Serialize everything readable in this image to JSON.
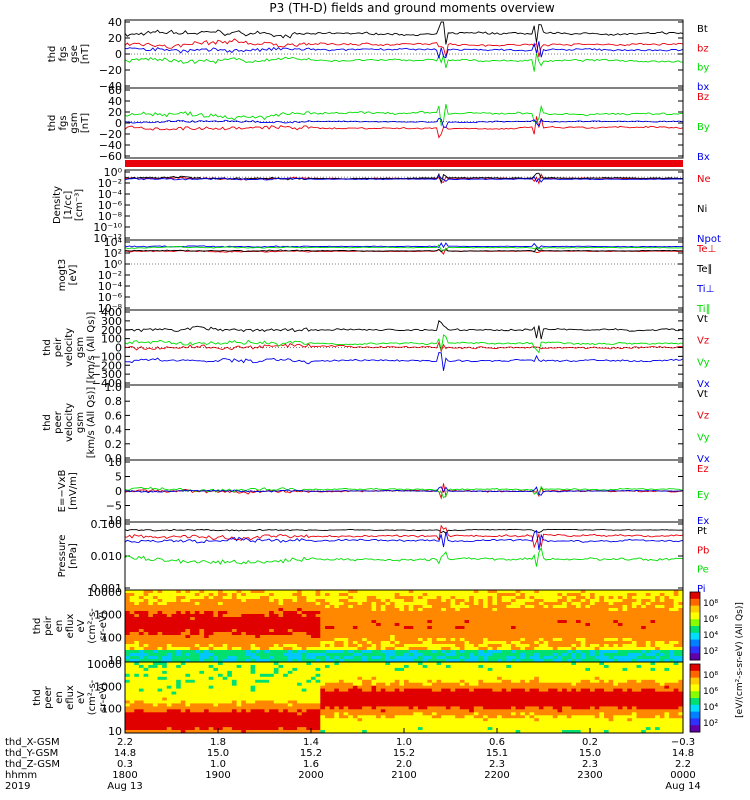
{
  "title": "P3 (TH-D) fields and ground moments overview",
  "colors": {
    "black": "#000000",
    "red": "#e8000b",
    "green": "#00dd00",
    "blue": "#0000ee"
  },
  "chart_data": [
    {
      "type": "line",
      "id": "fgs_gse",
      "ylabel": [
        "thd",
        "fgs",
        "gse",
        "[nT]"
      ],
      "yticks": [
        "40",
        "20",
        "0",
        "−20",
        "−40"
      ],
      "ylim": [
        -40,
        40
      ],
      "series": [
        {
          "name": "Bt",
          "color": "black",
          "level": 25,
          "amp": 8
        },
        {
          "name": "bz",
          "color": "red",
          "level": 12,
          "amp": 8
        },
        {
          "name": "by",
          "color": "green",
          "level": -8,
          "amp": 7
        },
        {
          "name": "bx",
          "color": "blue",
          "level": 5,
          "amp": 7
        }
      ]
    },
    {
      "type": "line",
      "id": "fgs_gsm",
      "ylabel": [
        "thd",
        "fgs",
        "gsm",
        "[nT]"
      ],
      "yticks": [
        "60",
        "40",
        "20",
        "0",
        "−20",
        "−40",
        "−60"
      ],
      "ylim": [
        -65,
        60
      ],
      "series": [
        {
          "name": "Bz",
          "color": "red",
          "level": -12,
          "amp": 10
        },
        {
          "name": "By",
          "color": "green",
          "level": 15,
          "amp": 12
        },
        {
          "name": "Bx",
          "color": "blue",
          "level": 0,
          "amp": 6
        }
      ]
    },
    {
      "type": "line",
      "id": "density",
      "ylabel": [
        "Density",
        "[1/cc]",
        "[cm⁻³]"
      ],
      "yticks": [
        "10⁰",
        "10⁻²",
        "10⁻⁴",
        "10⁻⁶",
        "10⁻⁸",
        "10⁻¹⁰",
        "10⁻¹²"
      ],
      "ylim": [
        -12,
        1
      ],
      "series": [
        {
          "name": "Ne",
          "color": "red",
          "level": -0.3,
          "amp": 0.5
        },
        {
          "name": "Ni",
          "color": "black",
          "level": -0.2,
          "amp": 0.5
        },
        {
          "name": "Npot",
          "color": "blue",
          "level": -0.4,
          "amp": 0.4
        }
      ]
    },
    {
      "type": "line",
      "id": "temperature",
      "ylabel": [
        "mogt3",
        "[eV]"
      ],
      "yticks": [
        "10⁴",
        "10²",
        "10⁰",
        "10⁻²",
        "10⁻⁴",
        "10⁻⁶",
        "10⁻⁸"
      ],
      "ylim": [
        -8,
        4
      ],
      "series": [
        {
          "name": "Te⊥",
          "color": "red",
          "level": 2.3,
          "amp": 0.3
        },
        {
          "name": "Te∥",
          "color": "black",
          "level": 2.4,
          "amp": 0.3
        },
        {
          "name": "Ti⊥",
          "color": "blue",
          "level": 3.2,
          "amp": 0.3
        },
        {
          "name": "Ti∥",
          "color": "green",
          "level": 3.0,
          "amp": 0.3
        }
      ]
    },
    {
      "type": "line",
      "id": "peir_velocity",
      "ylabel": [
        "thd",
        "peir",
        "velocity",
        "gsm",
        "[km/s (All Qs)]"
      ],
      "yticks": [
        "400",
        "300",
        "200",
        "100",
        "0",
        "−100",
        "−200",
        "−300",
        "−400"
      ],
      "ylim": [
        -400,
        400
      ],
      "series": [
        {
          "name": "Vt",
          "color": "black",
          "level": 200,
          "amp": 60
        },
        {
          "name": "Vz",
          "color": "red",
          "level": 0,
          "amp": 60
        },
        {
          "name": "Vy",
          "color": "green",
          "level": 50,
          "amp": 60
        },
        {
          "name": "Vx",
          "color": "blue",
          "level": -150,
          "amp": 60
        }
      ]
    },
    {
      "type": "line",
      "id": "peer_velocity",
      "ylabel": [
        "thd",
        "peer",
        "velocity",
        "gsm",
        "[km/s (All Qs)]"
      ],
      "yticks": [
        "1.0",
        "0.8",
        "0.6",
        "0.4",
        "0.2",
        "0.0"
      ],
      "ylim": [
        0,
        1
      ],
      "series": [
        {
          "name": "Vt",
          "color": "black"
        },
        {
          "name": "Vz",
          "color": "red"
        },
        {
          "name": "Vy",
          "color": "green"
        },
        {
          "name": "Vx",
          "color": "blue"
        }
      ]
    },
    {
      "type": "line",
      "id": "efield",
      "ylabel": [
        "E=−VxB",
        "[mV/m]"
      ],
      "yticks": [
        "10",
        "5",
        "0",
        "−5",
        "−10"
      ],
      "ylim": [
        -10,
        10
      ],
      "series": [
        {
          "name": "Ez",
          "color": "red",
          "level": 0,
          "amp": 1.5
        },
        {
          "name": "Ey",
          "color": "green",
          "level": 0.5,
          "amp": 1.5
        },
        {
          "name": "Ex",
          "color": "blue",
          "level": 0,
          "amp": 0.8
        }
      ]
    },
    {
      "type": "line",
      "id": "pressure",
      "ylabel": [
        "Pressure",
        "[nPa]"
      ],
      "yticks": [
        "0.100",
        "0.010",
        "0.001"
      ],
      "ylim": [
        -3.2,
        -0.5
      ],
      "series": [
        {
          "name": "Pt",
          "color": "black",
          "level": -0.75,
          "amp": 0.08
        },
        {
          "name": "Pb",
          "color": "red",
          "level": -1.0,
          "amp": 0.25
        },
        {
          "name": "Pe",
          "color": "green",
          "level": -2.0,
          "amp": 0.3
        },
        {
          "name": "Pi",
          "color": "blue",
          "level": -1.2,
          "amp": 0.25
        }
      ]
    },
    {
      "type": "heatmap",
      "id": "peir_eflux",
      "ylabel": [
        "thd",
        "peir",
        "en",
        "eflux",
        "eV",
        "(cm²-s-",
        "sr-eV)"
      ],
      "yticks": [
        "10000",
        "1000",
        "100",
        "10"
      ],
      "ylim": [
        5,
        25000
      ]
    },
    {
      "type": "heatmap",
      "id": "peer_eflux",
      "ylabel": [
        "thd",
        "peer",
        "en",
        "eflux",
        "eV",
        "(cm²-s-",
        "sr-eV)"
      ],
      "yticks": [
        "10000",
        "1000",
        "100",
        "10"
      ],
      "ylim": [
        5,
        25000
      ]
    }
  ],
  "colorbar": {
    "label": "[eV/(cm²-s-sr-eV) (All Qs)]",
    "ticks": [
      "10⁸",
      "10⁶",
      "10⁴",
      "10²"
    ],
    "ticks2": [
      "10⁸",
      "10⁶",
      "10⁴",
      "10²"
    ]
  },
  "xaxis": {
    "rows": [
      {
        "label": "thd_X-GSM",
        "values": [
          "2.2",
          "1.8",
          "1.4",
          "1.0",
          "0.6",
          "0.2",
          "−0.3"
        ]
      },
      {
        "label": "thd_Y-GSM",
        "values": [
          "14.8",
          "15.0",
          "15.2",
          "15.2",
          "15.1",
          "15.0",
          "14.8"
        ]
      },
      {
        "label": "thd_Z-GSM",
        "values": [
          "0.3",
          "1.0",
          "1.6",
          "2.0",
          "2.3",
          "2.3",
          "2.2"
        ]
      },
      {
        "label": "hhmm",
        "values": [
          "1800",
          "1900",
          "2000",
          "2100",
          "2200",
          "2300",
          "0000"
        ]
      },
      {
        "label": "2019",
        "values": [
          "Aug 13",
          "",
          "",
          "",
          "",
          "",
          "Aug 14"
        ]
      }
    ],
    "time_hours": [
      0,
      1,
      2,
      3,
      4,
      5,
      6
    ]
  }
}
